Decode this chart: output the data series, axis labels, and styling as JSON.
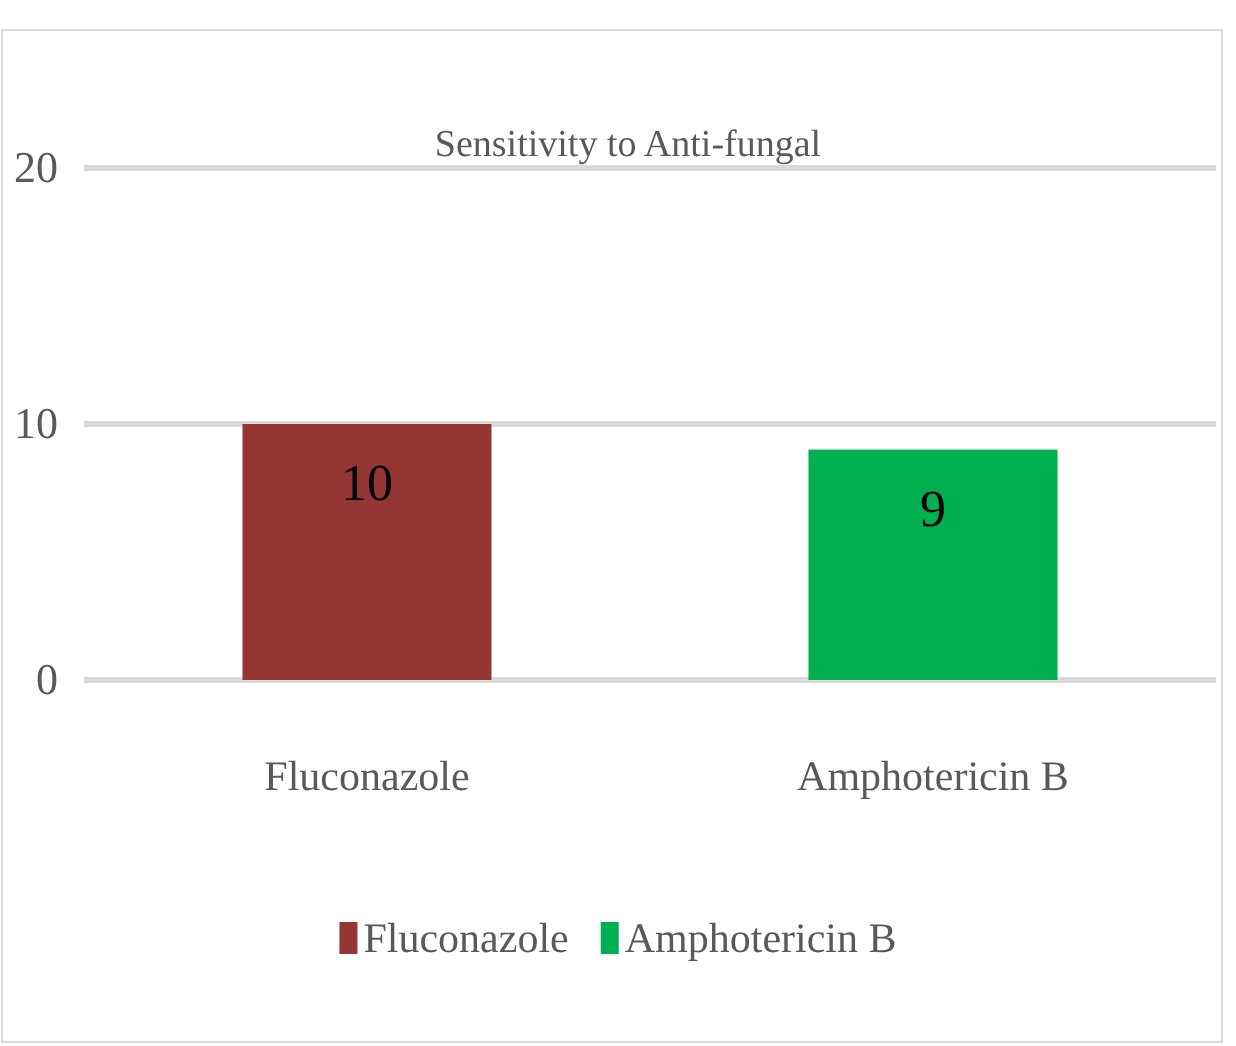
{
  "chart_data": {
    "type": "bar",
    "title": "Sensitivity to Anti-fungal",
    "categories": [
      "Fluconazole",
      "Amphotericin B"
    ],
    "series": [
      {
        "name": "Fluconazole",
        "color": "#943634",
        "values": [
          10,
          null
        ]
      },
      {
        "name": "Amphotericin B",
        "color": "#00b050",
        "values": [
          null,
          9
        ]
      }
    ],
    "ylim": [
      0,
      20
    ],
    "yticks": [
      0,
      10,
      20
    ],
    "grid": "y",
    "data_labels": true,
    "legend": "bottom"
  }
}
